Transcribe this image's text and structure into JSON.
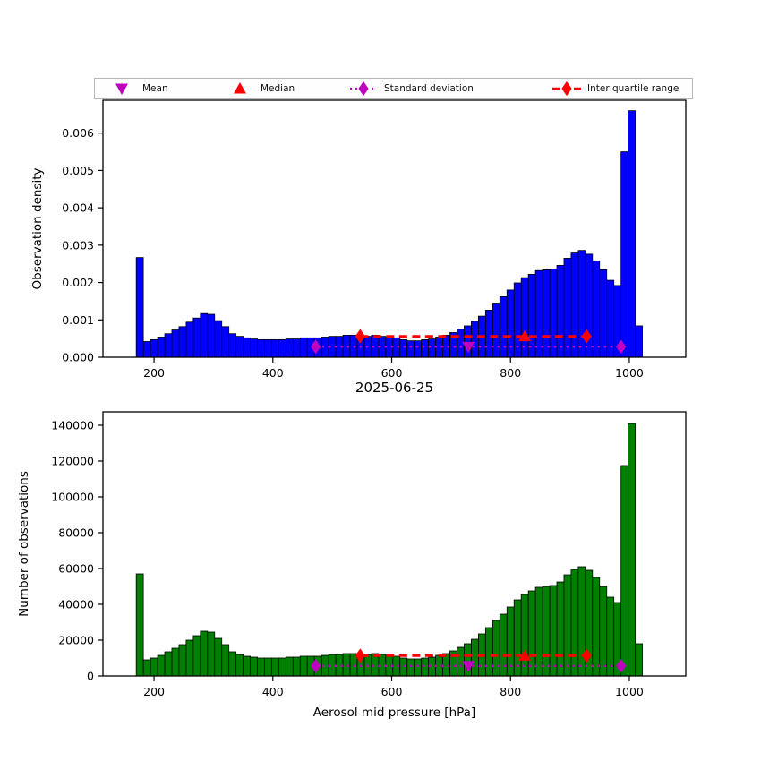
{
  "figure": {
    "title": "2025-06-25",
    "xlabel": "Aerosol mid pressure [hPa]",
    "background": "#ffffff"
  },
  "legend": {
    "items": [
      {
        "label": "Mean",
        "marker": "triangle-down",
        "line": "none",
        "color": "#bf00bf"
      },
      {
        "label": "Median",
        "marker": "triangle-up",
        "line": "none",
        "color": "#ff0000"
      },
      {
        "label": "Standard deviation",
        "marker": "diamond",
        "line": "dotted",
        "color": "#c000c0"
      },
      {
        "label": "Inter quartile range",
        "marker": "diamond",
        "line": "dashed",
        "color": "#ff0000"
      }
    ]
  },
  "stats": {
    "mean_hpa": 729,
    "median_hpa": 824,
    "std_range_hpa": [
      472,
      986
    ],
    "iqr_range_hpa": [
      547,
      928
    ]
  },
  "chart_data": [
    {
      "type": "bar",
      "name": "observation-density-histogram",
      "title": "",
      "xlabel": "",
      "ylabel": "Observation density",
      "bar_color": "#0000ff",
      "edge_color": "#000000",
      "grid": false,
      "xlim": [
        114,
        1095
      ],
      "ylim": [
        0,
        0.00688
      ],
      "xticks": [
        200,
        400,
        600,
        800,
        1000
      ],
      "yticks": [
        0,
        0.001,
        0.002,
        0.003,
        0.004,
        0.005,
        0.006
      ],
      "ytick_labels": [
        "0.000",
        "0.001",
        "0.002",
        "0.003",
        "0.004",
        "0.005",
        "0.006"
      ],
      "bin_start": 170,
      "bin_width": 12,
      "values": [
        0.00267,
        0.00042,
        0.00047,
        0.00054,
        0.00063,
        0.00073,
        0.00082,
        0.00094,
        0.00105,
        0.00117,
        0.00115,
        0.00098,
        0.00082,
        0.00063,
        0.00056,
        0.00052,
        0.00049,
        0.00047,
        0.00047,
        0.00047,
        0.00047,
        0.00049,
        0.00049,
        0.00052,
        0.00052,
        0.00052,
        0.00054,
        0.00056,
        0.00056,
        0.00059,
        0.00059,
        0.00056,
        0.00056,
        0.00059,
        0.00056,
        0.00054,
        0.00052,
        0.00047,
        0.00044,
        0.00044,
        0.00047,
        0.00049,
        0.00054,
        0.00059,
        0.00066,
        0.00075,
        0.00084,
        0.00096,
        0.0011,
        0.00126,
        0.00145,
        0.00162,
        0.0018,
        0.00199,
        0.00213,
        0.00222,
        0.00232,
        0.00234,
        0.00236,
        0.00246,
        0.00265,
        0.00279,
        0.00286,
        0.00276,
        0.00258,
        0.00234,
        0.00206,
        0.00192,
        0.0055,
        0.0066,
        0.00084
      ],
      "markers": {
        "std_line_y": 0.00028,
        "iqr_line_y": 0.00056,
        "mean_x": 729,
        "median_x": 824,
        "std_range_x": [
          472,
          986
        ],
        "iqr_range_x": [
          547,
          928
        ]
      }
    },
    {
      "type": "bar",
      "name": "observation-count-histogram",
      "title": "2025-06-25",
      "xlabel": "Aerosol mid pressure [hPa]",
      "ylabel": "Number of observations",
      "bar_color": "#008000",
      "edge_color": "#000000",
      "grid": false,
      "xlim": [
        114,
        1095
      ],
      "ylim": [
        0,
        147500
      ],
      "xticks": [
        200,
        400,
        600,
        800,
        1000
      ],
      "yticks": [
        0,
        20000,
        40000,
        60000,
        80000,
        100000,
        120000,
        140000
      ],
      "ytick_labels": [
        "0",
        "20000",
        "40000",
        "60000",
        "80000",
        "100000",
        "120000",
        "140000"
      ],
      "bin_start": 170,
      "bin_width": 12,
      "values": [
        57000,
        9000,
        10000,
        11500,
        13500,
        15500,
        17500,
        20000,
        22500,
        25000,
        24500,
        21000,
        17500,
        13500,
        12000,
        11000,
        10500,
        10000,
        10000,
        10000,
        10000,
        10500,
        10500,
        11000,
        11000,
        11000,
        11500,
        12000,
        12000,
        12500,
        12500,
        12000,
        12000,
        12500,
        12000,
        11500,
        11000,
        10000,
        9500,
        9500,
        10000,
        10500,
        11500,
        12500,
        14000,
        16000,
        18000,
        20500,
        23500,
        27000,
        31000,
        34500,
        38500,
        42500,
        45500,
        47500,
        49500,
        50000,
        50500,
        52500,
        56500,
        59500,
        61000,
        59000,
        55000,
        50000,
        44000,
        41000,
        117500,
        141000,
        18000
      ],
      "markers": {
        "std_line_y": 5600,
        "iqr_line_y": 11300,
        "mean_x": 729,
        "median_x": 824,
        "std_range_x": [
          472,
          986
        ],
        "iqr_range_x": [
          547,
          928
        ]
      }
    }
  ]
}
